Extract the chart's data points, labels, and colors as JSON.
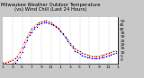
{
  "title": "Milwaukee Weather Outdoor Temperature (vs) Wind Chill (Last 24 Hours)",
  "bg_color": "#c8c8c8",
  "plot_bg": "#ffffff",
  "temp_color": "#cc0000",
  "windchill_color": "#0000cc",
  "ylim": [
    -5,
    55
  ],
  "ytick_values": [
    0,
    5,
    10,
    15,
    20,
    25,
    30,
    35,
    40,
    45,
    50
  ],
  "ytick_labels": [
    "0",
    "5",
    "10",
    "15",
    "20",
    "25",
    "30",
    "35",
    "40",
    "45",
    "50"
  ],
  "xlim": [
    0,
    48
  ],
  "xtick_positions": [
    0,
    4,
    8,
    12,
    16,
    20,
    24,
    28,
    32,
    36,
    40,
    44,
    48
  ],
  "xtick_labels": [
    "1",
    "3",
    "5",
    "7",
    "9",
    "11",
    "1",
    "3",
    "5",
    "7",
    "9",
    "11",
    "1"
  ],
  "temp": [
    -3,
    -3,
    -2,
    -1,
    0,
    2,
    5,
    10,
    16,
    23,
    30,
    36,
    40,
    43,
    46,
    48,
    49,
    50,
    50,
    49,
    48,
    46,
    44,
    41,
    38,
    34,
    30,
    26,
    22,
    18,
    15,
    13,
    11,
    9,
    8,
    7,
    6,
    5,
    5,
    5,
    5,
    6,
    7,
    8,
    9,
    10,
    11,
    12
  ],
  "windchill": [
    -8,
    -8,
    -7,
    -6,
    -5,
    -3,
    0,
    4,
    10,
    17,
    25,
    32,
    36,
    40,
    43,
    46,
    47,
    48,
    48,
    47,
    46,
    45,
    43,
    40,
    37,
    33,
    29,
    24,
    20,
    16,
    12,
    10,
    8,
    6,
    5,
    4,
    3,
    2,
    2,
    2,
    2,
    3,
    4,
    5,
    6,
    7,
    8,
    9
  ],
  "vgrid_positions": [
    0,
    4,
    8,
    12,
    16,
    20,
    24,
    28,
    32,
    36,
    40,
    44,
    48
  ],
  "grid_color": "#888888",
  "tick_color": "#000000",
  "title_fontsize": 3.8,
  "label_fontsize": 3.2,
  "line_width": 0.7,
  "marker_size": 0.9
}
